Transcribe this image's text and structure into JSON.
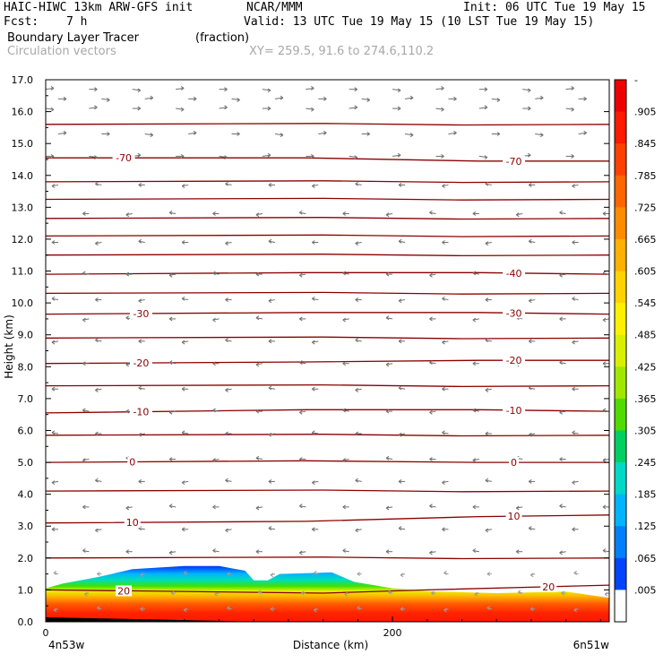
{
  "header": {
    "model": "HAIC-HIWC 13km ARW-GFS init",
    "org": "NCAR/MMM",
    "init": "Init: 06 UTC Tue 19 May 15",
    "fcst_label": "Fcst:",
    "fcst_value": "7 h",
    "valid": "Valid: 13 UTC Tue 19 May 15 (10 LST Tue 19 May 15)",
    "field1_name": "Boundary Layer Tracer",
    "field1_units": "(fraction)",
    "field2_name": "Circulation vectors",
    "xy": "XY= 259.5, 91.6 to 274.6,110.2"
  },
  "colorbar": {
    "labels": [
      "-",
      ".905",
      ".845",
      ".785",
      ".725",
      ".665",
      ".605",
      ".545",
      ".485",
      ".425",
      ".365",
      ".305",
      ".245",
      ".185",
      ".125",
      ".065",
      ".005"
    ],
    "colors": [
      "#ee0000",
      "#ff1a00",
      "#ff4000",
      "#ff6600",
      "#ff8c00",
      "#ffb000",
      "#ffd200",
      "#fff000",
      "#d8f000",
      "#a0e800",
      "#50dc00",
      "#00d060",
      "#00d8c8",
      "#00b4ff",
      "#0080ff",
      "#0044ff",
      "#ffffff"
    ]
  },
  "chart_data": {
    "type": "cross-section",
    "title": "Boundary Layer Tracer",
    "units": "(fraction)",
    "xlabel": "Distance (km)",
    "ylabel": "Height (km)",
    "x_ticks": [
      "0",
      "200"
    ],
    "x_endpoints": [
      "4n53w",
      "6n51w"
    ],
    "xlim": [
      0,
      325
    ],
    "ylim": [
      0,
      17
    ],
    "y_ticks": [
      "0.0",
      "1.0",
      "2.0",
      "3.0",
      "4.0",
      "5.0",
      "6.0",
      "7.0",
      "8.0",
      "9.0",
      "10.0",
      "11.0",
      "12.0",
      "13.0",
      "14.0",
      "15.0",
      "16.0",
      "17.0"
    ],
    "boundary_layer_top_km": [
      [
        0,
        1.05
      ],
      [
        10,
        1.2
      ],
      [
        30,
        1.4
      ],
      [
        50,
        1.65
      ],
      [
        80,
        1.75
      ],
      [
        100,
        1.75
      ],
      [
        115,
        1.6
      ],
      [
        120,
        1.3
      ],
      [
        128,
        1.3
      ],
      [
        135,
        1.5
      ],
      [
        165,
        1.55
      ],
      [
        178,
        1.25
      ],
      [
        200,
        1.05
      ],
      [
        225,
        0.95
      ],
      [
        260,
        0.9
      ],
      [
        300,
        0.95
      ],
      [
        325,
        0.75
      ]
    ],
    "temperature_contours": [
      {
        "value": 20,
        "label": "20",
        "points": [
          [
            0,
            1.0
          ],
          [
            160,
            0.9
          ],
          [
            220,
            1.0
          ],
          [
            325,
            1.15
          ]
        ],
        "label_x": [
          45,
          290
        ]
      },
      {
        "value": 10,
        "label": "10",
        "points": [
          [
            0,
            3.1
          ],
          [
            150,
            3.15
          ],
          [
            250,
            3.3
          ],
          [
            325,
            3.35
          ]
        ],
        "label_x": [
          50,
          270
        ]
      },
      {
        "value": 0,
        "label": "0",
        "points": [
          [
            0,
            5.0
          ],
          [
            150,
            5.05
          ],
          [
            250,
            5.0
          ],
          [
            325,
            5.0
          ]
        ],
        "label_x": [
          50,
          270
        ]
      },
      {
        "value": -10,
        "label": "-10",
        "points": [
          [
            0,
            6.55
          ],
          [
            150,
            6.65
          ],
          [
            250,
            6.65
          ],
          [
            325,
            6.6
          ]
        ],
        "label_x": [
          55,
          270
        ]
      },
      {
        "value": -20,
        "label": "-20",
        "points": [
          [
            0,
            8.1
          ],
          [
            150,
            8.15
          ],
          [
            250,
            8.2
          ],
          [
            325,
            8.2
          ]
        ],
        "label_x": [
          55,
          270
        ]
      },
      {
        "value": -30,
        "label": "-30",
        "points": [
          [
            0,
            9.65
          ],
          [
            150,
            9.7
          ],
          [
            250,
            9.7
          ],
          [
            325,
            9.65
          ]
        ],
        "label_x": [
          55,
          270
        ]
      },
      {
        "value": -40,
        "label": "-40",
        "points": [
          [
            0,
            10.9
          ],
          [
            150,
            10.95
          ],
          [
            250,
            10.95
          ],
          [
            325,
            10.9
          ]
        ],
        "label_x": [
          270
        ]
      },
      {
        "value": -70,
        "label": "-70",
        "points": [
          [
            0,
            14.55
          ],
          [
            150,
            14.55
          ],
          [
            250,
            14.45
          ],
          [
            325,
            14.45
          ]
        ],
        "label_x": [
          45,
          270
        ]
      }
    ],
    "other_contours_km": [
      2.0,
      4.1,
      5.85,
      7.4,
      8.9,
      10.3,
      11.5,
      12.1,
      12.65,
      13.25,
      13.8,
      15.6
    ],
    "vector_rows_km": [
      16.7,
      16.4,
      16.1,
      15.3,
      14.6,
      13.7,
      12.8,
      11.9,
      10.9,
      10.1,
      9.5,
      8.8,
      8.1,
      7.3,
      6.6,
      5.9,
      5.1,
      4.4,
      3.6,
      2.9,
      2.2,
      1.5,
      0.9,
      0.4
    ],
    "vector_cols_km": [
      0,
      25,
      50,
      75,
      100,
      125,
      150,
      175,
      200,
      225,
      250,
      275,
      300,
      325
    ]
  }
}
